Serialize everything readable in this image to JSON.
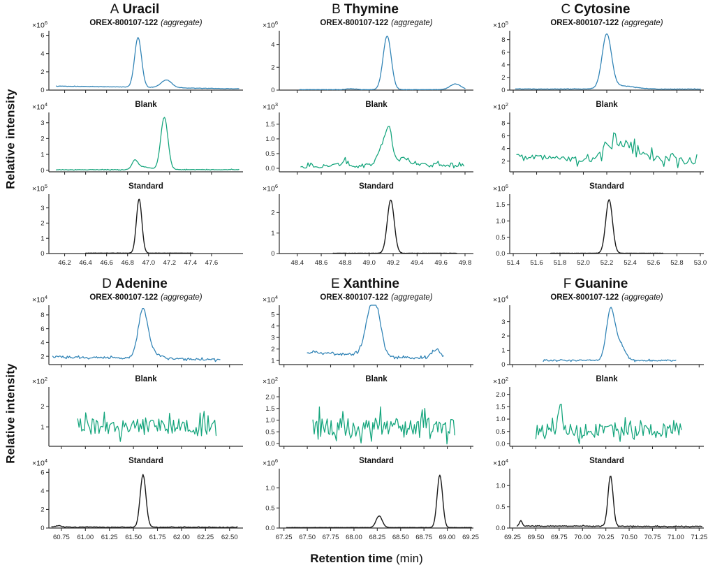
{
  "figure": {
    "y_axis_label": "Relative intensity",
    "x_axis_label": "Retention time",
    "x_axis_unit": " (min)"
  },
  "colors": {
    "sample": "#2e82b5",
    "blank": "#12a47b",
    "standard": "#1a1a1a",
    "axis": "#2f2f2f"
  },
  "chart_data": [
    {
      "type": "line",
      "panel_letter": "A",
      "compound": "Uracil",
      "x_range": [
        46.05,
        47.9
      ],
      "x_ticks": [
        "46.2",
        "46.4",
        "46.6",
        "46.8",
        "47.0",
        "47.2",
        "47.4",
        "47.6"
      ],
      "subplots": [
        {
          "series": "sample",
          "title_bold": "OREX-800107-122",
          "title_italic": "(aggregate)",
          "scale_exp": "6",
          "y_ticks": [
            "0",
            "2",
            "4",
            "6"
          ],
          "y_range": [
            0,
            6.5
          ],
          "x_data": [
            46.12,
            47.86
          ],
          "baseline": [
            0.45,
            0.14
          ],
          "noise": 0.02,
          "points": 230,
          "peaks": [
            {
              "c": 46.9,
              "h": 5.45,
              "w": 0.033
            },
            {
              "c": 47.17,
              "h": 0.85,
              "w": 0.05
            }
          ]
        },
        {
          "series": "blank",
          "title_bold": "Blank",
          "title_italic": "",
          "scale_exp": "4",
          "y_ticks": [
            "0",
            "1",
            "2",
            "3"
          ],
          "y_range": [
            -0.1,
            3.65
          ],
          "x_data": [
            46.12,
            47.86
          ],
          "baseline": [
            0.03,
            0.04
          ],
          "noise": 0.018,
          "points": 200,
          "peaks": [
            {
              "c": 46.87,
              "h": 0.55,
              "w": 0.028
            },
            {
              "c": 46.95,
              "h": 0.18,
              "w": 0.06
            },
            {
              "c": 47.15,
              "h": 3.32,
              "w": 0.034
            }
          ]
        },
        {
          "series": "standard",
          "title_bold": "Standard",
          "title_italic": "",
          "scale_exp": "5",
          "y_ticks": [
            "0",
            "1",
            "2",
            "3"
          ],
          "y_range": [
            0,
            3.9
          ],
          "x_data": [
            46.4,
            47.42
          ],
          "baseline": [
            0.03,
            0.03
          ],
          "noise": 0.006,
          "points": 220,
          "peaks": [
            {
              "c": 46.91,
              "h": 3.55,
              "w": 0.026
            }
          ]
        }
      ]
    },
    {
      "type": "line",
      "panel_letter": "B",
      "compound": "Thymine",
      "x_range": [
        48.25,
        49.87
      ],
      "x_ticks": [
        "48.4",
        "48.6",
        "48.8",
        "49.0",
        "49.2",
        "49.4",
        "49.6",
        "49.8"
      ],
      "subplots": [
        {
          "series": "sample",
          "title_bold": "OREX-800107-122",
          "title_italic": "(aggregate)",
          "scale_exp": "6",
          "y_ticks": [
            "0",
            "2",
            "4"
          ],
          "y_range": [
            0,
            5.2
          ],
          "x_data": [
            48.42,
            49.8
          ],
          "baseline": [
            0.04,
            0.04
          ],
          "noise": 0.012,
          "points": 230,
          "peaks": [
            {
              "c": 48.85,
              "h": 0.08,
              "w": 0.04
            },
            {
              "c": 49.15,
              "h": 4.7,
              "w": 0.034
            },
            {
              "c": 49.72,
              "h": 0.5,
              "w": 0.045
            }
          ]
        },
        {
          "series": "blank",
          "title_bold": "Blank",
          "title_italic": "",
          "scale_exp": "3",
          "y_ticks": [
            "0.0",
            "0.5",
            "1.0",
            "1.5"
          ],
          "y_range": [
            -0.12,
            1.9
          ],
          "x_data": [
            48.43,
            49.79
          ],
          "baseline": [
            0.07,
            0.12
          ],
          "noise": 0.07,
          "points": 115,
          "peaks": [
            {
              "c": 48.8,
              "h": 0.22,
              "w": 0.03
            },
            {
              "c": 49.13,
              "h": 0.85,
              "w": 0.045
            },
            {
              "c": 49.17,
              "h": 0.7,
              "w": 0.02
            },
            {
              "c": 49.28,
              "h": 0.25,
              "w": 0.06
            }
          ]
        },
        {
          "series": "standard",
          "title_bold": "Standard",
          "title_italic": "",
          "scale_exp": "6",
          "y_ticks": [
            "0",
            "1",
            "2"
          ],
          "y_range": [
            0,
            2.9
          ],
          "x_data": [
            48.7,
            49.73
          ],
          "baseline": [
            0.015,
            0.015
          ],
          "noise": 0.005,
          "points": 220,
          "peaks": [
            {
              "c": 49.18,
              "h": 2.6,
              "w": 0.029
            }
          ]
        }
      ]
    },
    {
      "type": "line",
      "panel_letter": "C",
      "compound": "Cytosine",
      "x_range": [
        51.37,
        53.03
      ],
      "x_ticks": [
        "51.4",
        "51.6",
        "51.8",
        "52.0",
        "52.2",
        "52.4",
        "52.6",
        "52.8",
        "53.0"
      ],
      "subplots": [
        {
          "series": "sample",
          "title_bold": "OREX-800107-122",
          "title_italic": "(aggregate)",
          "scale_exp": "5",
          "y_ticks": [
            "0",
            "2",
            "4",
            "6",
            "8"
          ],
          "y_range": [
            0,
            9.4
          ],
          "x_data": [
            51.42,
            53.0
          ],
          "baseline": [
            0.18,
            0.16
          ],
          "noise": 0.035,
          "points": 230,
          "peaks": [
            {
              "c": 52.2,
              "h": 8.45,
              "w": 0.04
            },
            {
              "c": 52.32,
              "h": 0.5,
              "w": 0.12
            }
          ]
        },
        {
          "series": "blank",
          "title_bold": "Blank",
          "title_italic": "",
          "scale_exp": "2",
          "y_ticks": [
            "2",
            "4",
            "6",
            "8"
          ],
          "y_range": [
            0.3,
            9.7
          ],
          "x_data": [
            51.43,
            52.97
          ],
          "baseline": [
            2.7,
            1.7
          ],
          "noise": 0.38,
          "points": 105,
          "peaks": [
            {
              "c": 52.28,
              "h": 2.6,
              "w": 0.09
            },
            {
              "c": 52.55,
              "h": 1.1,
              "w": 0.22
            }
          ],
          "noise_peaks": [
            {
              "c": 52.45,
              "w": 0.3,
              "mult": 3.2
            }
          ]
        },
        {
          "series": "standard",
          "title_bold": "Standard",
          "title_italic": "",
          "scale_exp": "6",
          "y_ticks": [
            "0.0",
            "0.5",
            "1.0",
            "1.5"
          ],
          "y_range": [
            0,
            1.82
          ],
          "x_data": [
            51.72,
            52.68
          ],
          "baseline": [
            0.01,
            0.01
          ],
          "noise": 0.003,
          "points": 220,
          "peaks": [
            {
              "c": 52.22,
              "h": 1.64,
              "w": 0.029
            }
          ]
        }
      ]
    },
    {
      "type": "line",
      "panel_letter": "D",
      "compound": "Adenine",
      "x_range": [
        60.62,
        62.64
      ],
      "x_ticks": [
        "60.75",
        "61.00",
        "61.25",
        "61.50",
        "61.75",
        "62.00",
        "62.25",
        "62.50"
      ],
      "subplots": [
        {
          "series": "sample",
          "title_bold": "OREX-800107-122",
          "title_italic": "(aggregate)",
          "scale_exp": "4",
          "y_ticks": [
            "2",
            "4",
            "6",
            "8"
          ],
          "y_range": [
            0.8,
            9.4
          ],
          "x_data": [
            60.66,
            62.4
          ],
          "baseline": [
            1.95,
            1.5
          ],
          "noise": 0.13,
          "points": 150,
          "peaks": [
            {
              "c": 61.6,
              "h": 6.85,
              "w": 0.05
            },
            {
              "c": 61.7,
              "h": 0.7,
              "w": 0.08
            }
          ]
        },
        {
          "series": "blank",
          "title_bold": "Blank",
          "title_italic": "",
          "scale_exp": "2",
          "y_ticks": [
            "1",
            "2"
          ],
          "y_range": [
            0.05,
            2.95
          ],
          "x_data": [
            60.92,
            62.36
          ],
          "baseline": [
            1.05,
            0.95
          ],
          "noise": 0.42,
          "points": 105,
          "peaks": []
        },
        {
          "series": "standard",
          "title_bold": "Standard",
          "title_italic": "",
          "scale_exp": "4",
          "y_ticks": [
            "0",
            "2",
            "4",
            "6"
          ],
          "y_range": [
            0,
            6.4
          ],
          "x_data": [
            60.65,
            62.58
          ],
          "baseline": [
            0.1,
            0.08
          ],
          "noise": 0.035,
          "points": 190,
          "peaks": [
            {
              "c": 60.72,
              "h": 0.15,
              "w": 0.03
            },
            {
              "c": 61.6,
              "h": 5.68,
              "w": 0.03
            }
          ]
        }
      ]
    },
    {
      "type": "line",
      "panel_letter": "E",
      "compound": "Xanthine",
      "x_range": [
        67.2,
        69.28
      ],
      "x_ticks": [
        "67.25",
        "67.50",
        "67.75",
        "68.00",
        "68.25",
        "68.50",
        "68.75",
        "69.00",
        "69.25"
      ],
      "subplots": [
        {
          "series": "sample",
          "title_bold": "OREX-800107-122",
          "title_italic": "(aggregate)",
          "scale_exp": "4",
          "y_ticks": [
            "1",
            "2",
            "3",
            "4",
            "5"
          ],
          "y_range": [
            0.65,
            5.8
          ],
          "x_data": [
            67.5,
            68.96
          ],
          "baseline": [
            1.75,
            1.1
          ],
          "noise": 0.1,
          "points": 140,
          "peaks": [
            {
              "c": 68.17,
              "h": 3.35,
              "w": 0.055
            },
            {
              "c": 68.25,
              "h": 3.1,
              "w": 0.05
            },
            {
              "c": 68.88,
              "h": 0.75,
              "w": 0.05
            }
          ]
        },
        {
          "series": "blank",
          "title_bold": "Blank",
          "title_italic": "",
          "scale_exp": "2",
          "y_ticks": [
            "0.0",
            "0.5",
            "1.0",
            "1.5",
            "2.0"
          ],
          "y_range": [
            -0.12,
            2.42
          ],
          "x_data": [
            67.56,
            69.08
          ],
          "baseline": [
            0.75,
            0.72
          ],
          "noise": 0.4,
          "points": 110,
          "peaks": []
        },
        {
          "series": "standard",
          "title_bold": "Standard",
          "title_italic": "",
          "scale_exp": "6",
          "y_ticks": [
            "0.0",
            "0.5",
            "1.0"
          ],
          "y_range": [
            0,
            1.48
          ],
          "x_data": [
            67.28,
            69.26
          ],
          "baseline": [
            0.012,
            0.012
          ],
          "noise": 0.003,
          "points": 240,
          "peaks": [
            {
              "c": 68.27,
              "h": 0.29,
              "w": 0.033
            },
            {
              "c": 68.92,
              "h": 1.31,
              "w": 0.029
            }
          ]
        }
      ]
    },
    {
      "type": "line",
      "panel_letter": "F",
      "compound": "Guanine",
      "x_range": [
        69.22,
        71.3
      ],
      "x_ticks": [
        "69.25",
        "69.50",
        "69.75",
        "70.00",
        "70.25",
        "70.50",
        "70.75",
        "71.00",
        "71.25"
      ],
      "subplots": [
        {
          "series": "sample",
          "title_bold": "OREX-800107-122",
          "title_italic": "(aggregate)",
          "scale_exp": "4",
          "y_ticks": [
            "0",
            "1",
            "2",
            "3"
          ],
          "y_range": [
            0,
            4.15
          ],
          "x_data": [
            69.58,
            71.0
          ],
          "baseline": [
            0.3,
            0.28
          ],
          "noise": 0.05,
          "points": 140,
          "peaks": [
            {
              "c": 70.3,
              "h": 3.45,
              "w": 0.045
            },
            {
              "c": 70.4,
              "h": 1.1,
              "w": 0.055
            }
          ]
        },
        {
          "series": "blank",
          "title_bold": "Blank",
          "title_italic": "",
          "scale_exp": "2",
          "y_ticks": [
            "0.0",
            "0.5",
            "1.0",
            "1.5",
            "2.0"
          ],
          "y_range": [
            -0.1,
            2.3
          ],
          "x_data": [
            69.5,
            71.06
          ],
          "baseline": [
            0.5,
            0.55
          ],
          "noise": 0.3,
          "points": 115,
          "peaks": [
            {
              "c": 69.76,
              "h": 1.35,
              "w": 0.018
            }
          ]
        },
        {
          "series": "standard",
          "title_bold": "Standard",
          "title_italic": "",
          "scale_exp": "4",
          "y_ticks": [
            "0.0",
            "0.5",
            "1.0"
          ],
          "y_range": [
            0,
            1.4
          ],
          "x_data": [
            69.3,
            71.28
          ],
          "baseline": [
            0.05,
            0.035
          ],
          "noise": 0.01,
          "points": 200,
          "peaks": [
            {
              "c": 69.34,
              "h": 0.12,
              "w": 0.015
            },
            {
              "c": 70.3,
              "h": 1.2,
              "w": 0.027
            }
          ]
        }
      ]
    }
  ]
}
